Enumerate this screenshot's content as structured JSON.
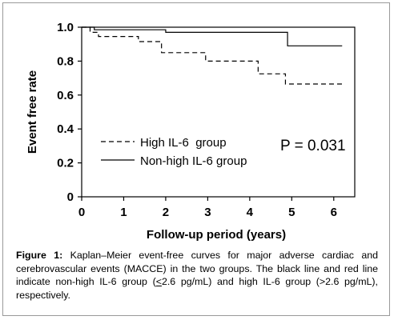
{
  "chart_data": {
    "type": "line",
    "xlabel": "Follow-up period (years)",
    "ylabel": "Event free rate",
    "xlim": [
      0,
      6.5
    ],
    "ylim": [
      0,
      1.0
    ],
    "xticks": [
      "0",
      "1",
      "2",
      "3",
      "4",
      "5",
      "6"
    ],
    "yticks": [
      "0",
      "0.2",
      "0.4",
      "0.6",
      "0.8",
      "1.0"
    ],
    "grid": false,
    "legend_position": "bottom-left",
    "series": [
      {
        "name": "High IL-6  group",
        "line_style": "dashed",
        "color": "#000000",
        "x": [
          0.2,
          0.4,
          1.35,
          1.9,
          2.95,
          4.2,
          4.85,
          6.2
        ],
        "y": [
          0.97,
          0.945,
          0.915,
          0.85,
          0.8,
          0.725,
          0.665,
          0.665
        ]
      },
      {
        "name": "Non-high IL-6 group",
        "line_style": "solid",
        "color": "#000000",
        "x": [
          0.3,
          2.0,
          4.9,
          6.2
        ],
        "y": [
          0.985,
          0.97,
          0.89,
          0.89
        ]
      }
    ],
    "annotation": "P = 0.031"
  },
  "caption": {
    "label": "Figure 1:",
    "part1": " Kaplan–Meier event-free curves for major adverse cardiac and cerebrovascular events (MACCE) in the two groups. The black line and red line indicate non-high IL-6 group (",
    "ineq1": "<",
    "part2": "2.6 pg/mL) and high IL-6 group (>2.6 pg/mL), respectively."
  }
}
